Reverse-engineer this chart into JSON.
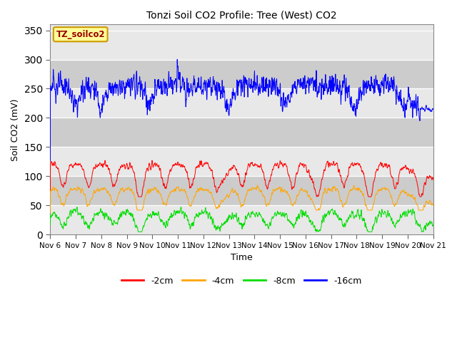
{
  "title": "Tonzi Soil CO2 Profile: Tree (West) CO2",
  "ylabel": "Soil CO2 (mV)",
  "xlabel": "Time",
  "sensor_label": "TZ_soilco2",
  "legend_labels": [
    "-2cm",
    "-4cm",
    "-8cm",
    "-16cm"
  ],
  "legend_colors": [
    "#ff0000",
    "#ffa500",
    "#00dd00",
    "#0000ff"
  ],
  "bg_color_light": "#e8e8e8",
  "bg_color_dark": "#cccccc",
  "ylim": [
    0,
    360
  ],
  "yticks": [
    0,
    50,
    100,
    150,
    200,
    250,
    300,
    350
  ],
  "n_points": 2160,
  "days": 15,
  "start_day": 6,
  "line_width": 0.7,
  "figsize": [
    6.4,
    4.8
  ],
  "dpi": 100
}
